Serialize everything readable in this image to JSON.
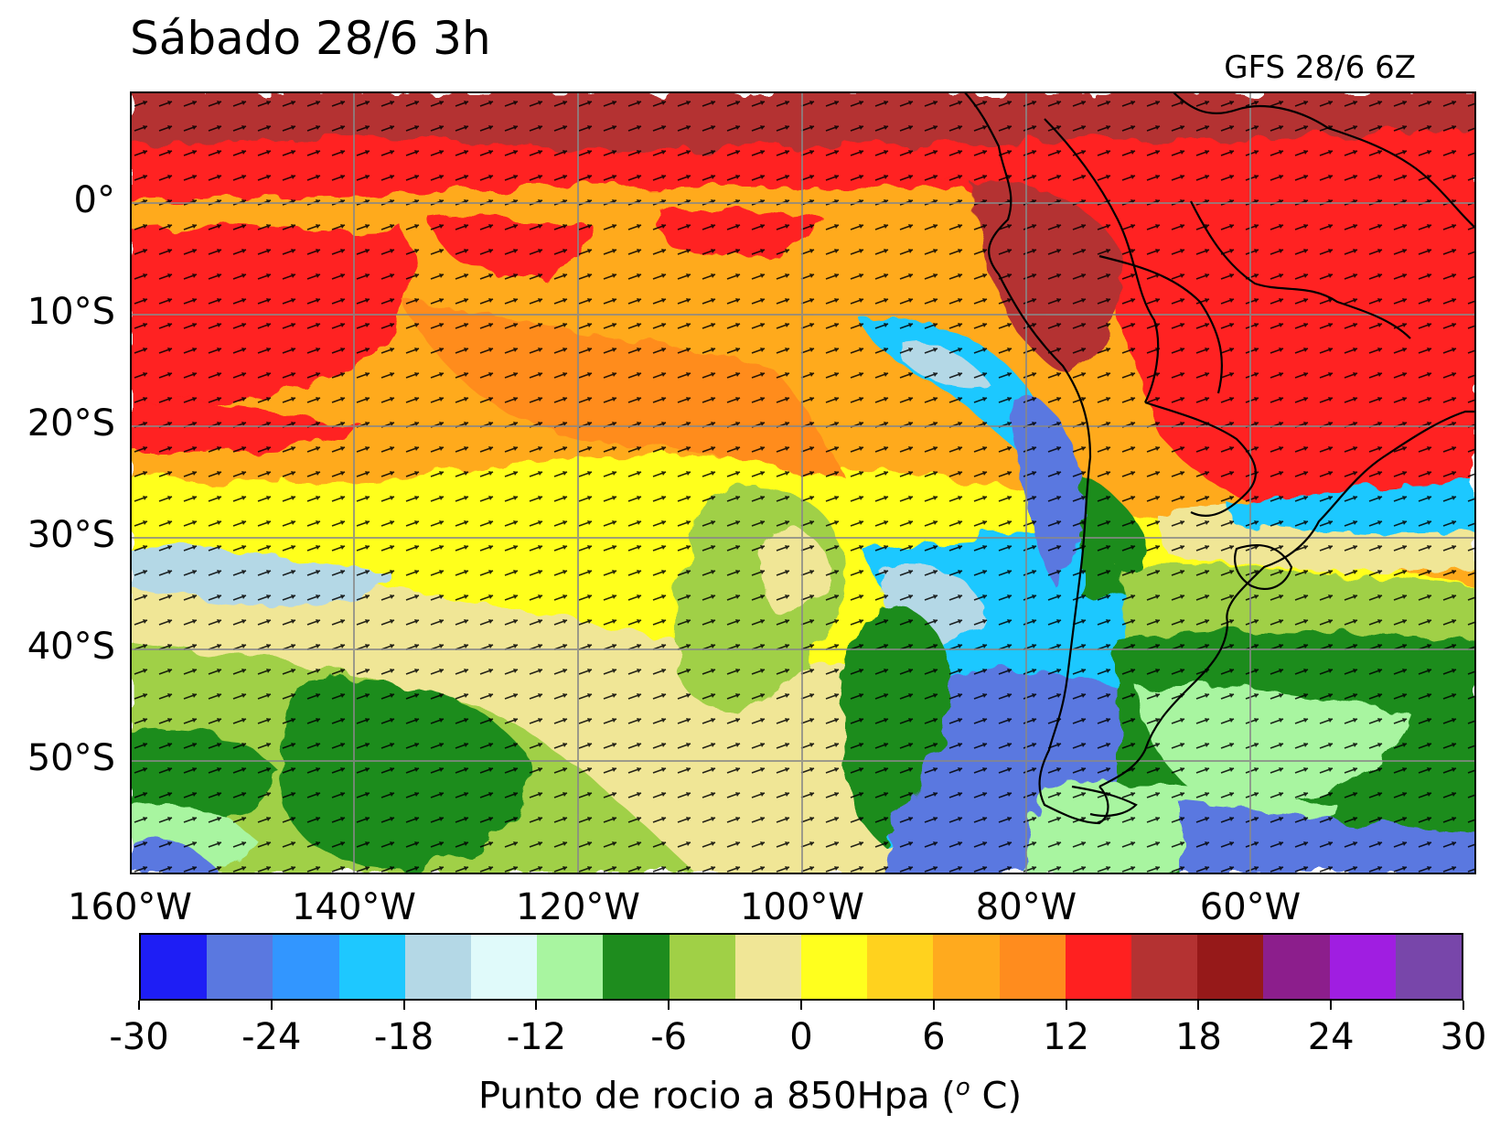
{
  "header": {
    "title": "Sábado 28/6 3h",
    "model_run": "GFS 28/6 6Z"
  },
  "map": {
    "lat_labels": [
      "0°",
      "10°S",
      "20°S",
      "30°S",
      "40°S",
      "50°S"
    ],
    "lon_labels": [
      "160°W",
      "140°W",
      "120°W",
      "100°W",
      "80°W",
      "60°W"
    ],
    "regions": [
      "south-pacific-ocean",
      "south-america"
    ]
  },
  "colorbar": {
    "ticks": [
      "-30",
      "-24",
      "-18",
      "-12",
      "-6",
      "0",
      "6",
      "12",
      "18",
      "24",
      "30"
    ],
    "label_text": "Punto de rocio a 850Hpa (",
    "label_sup": "o",
    "label_end": " C)",
    "colors": [
      "#1e1ef5",
      "#5a78e0",
      "#3296ff",
      "#1ec8ff",
      "#b4d8e6",
      "#e0fafa",
      "#a8f5a0",
      "#1e8c1e",
      "#a0d046",
      "#f0e696",
      "#ffff1e",
      "#ffd21e",
      "#ffaa1e",
      "#ff8c1e",
      "#ff2020",
      "#b43232",
      "#961919",
      "#8c1e8c",
      "#a01ee1",
      "#7846aa"
    ]
  }
}
